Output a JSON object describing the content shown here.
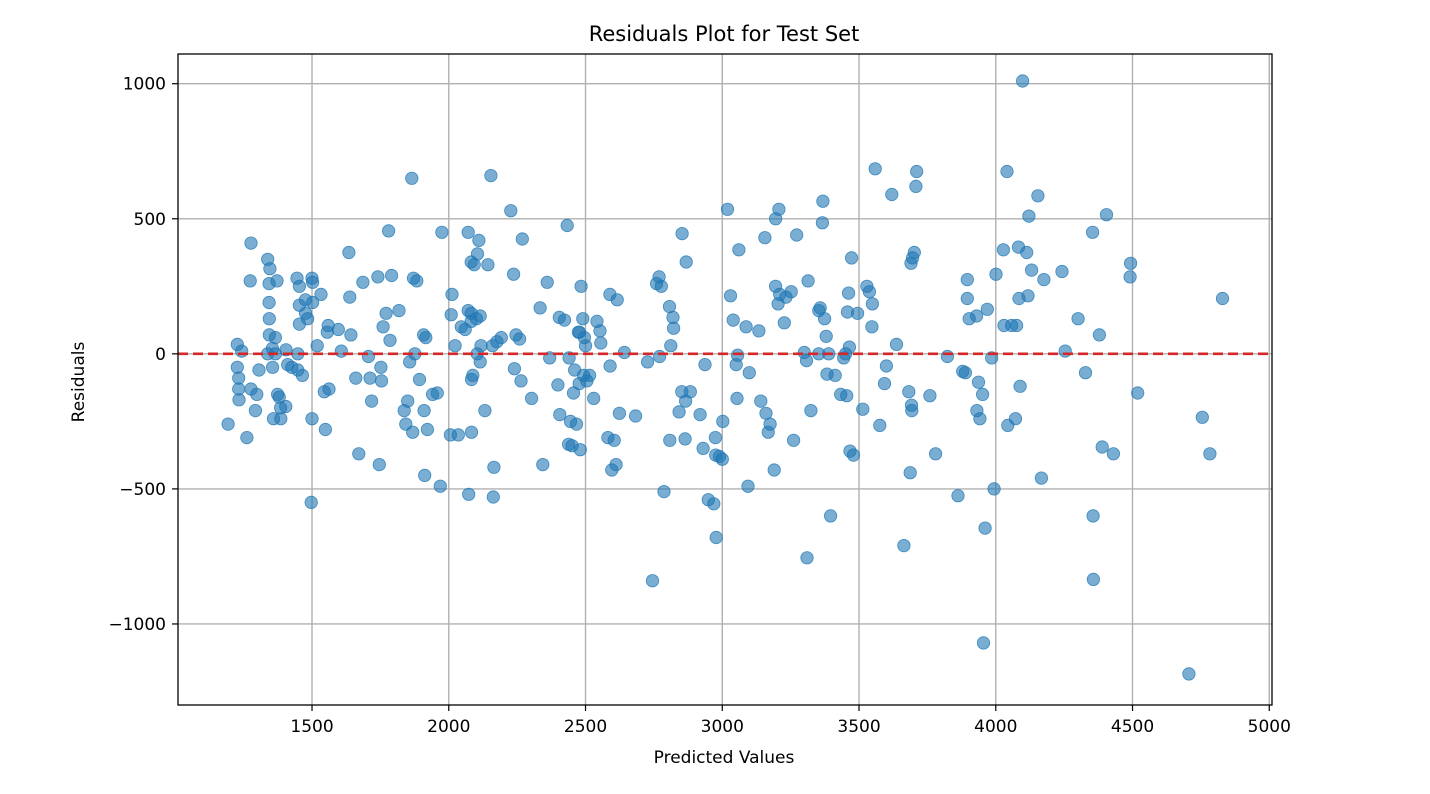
{
  "chart_data": {
    "type": "scatter",
    "title": "Residuals Plot for Test Set",
    "xlabel": "Predicted Values",
    "ylabel": "Residuals",
    "xlim": [
      1010,
      5010
    ],
    "ylim": [
      -1300,
      1110
    ],
    "xticks": [
      1500,
      2000,
      2500,
      3000,
      3500,
      4000,
      4500,
      5000
    ],
    "xtick_labels": [
      "1500",
      "2000",
      "2500",
      "3000",
      "3500",
      "4000",
      "4500",
      "5000"
    ],
    "yticks": [
      -1000,
      -500,
      0,
      500,
      1000
    ],
    "ytick_labels": [
      "−1000",
      "−500",
      "0",
      "500",
      "1000"
    ],
    "grid": true,
    "point_color": "#1f77b4",
    "point_opacity": 0.6,
    "reference_line": {
      "y": 0,
      "color": "#d62728",
      "style": "dashed"
    },
    "points": [
      [
        1193,
        -260
      ],
      [
        1227,
        35
      ],
      [
        1227,
        -50
      ],
      [
        1232,
        -90
      ],
      [
        1232,
        -130
      ],
      [
        1233,
        -170
      ],
      [
        1243,
        10
      ],
      [
        1262,
        -310
      ],
      [
        1274,
        270
      ],
      [
        1277,
        410
      ],
      [
        1277,
        -130
      ],
      [
        1293,
        -210
      ],
      [
        1298,
        -150
      ],
      [
        1306,
        -60
      ],
      [
        1338,
        350
      ],
      [
        1338,
        0
      ],
      [
        1343,
        260
      ],
      [
        1343,
        190
      ],
      [
        1344,
        130
      ],
      [
        1344,
        70
      ],
      [
        1346,
        315
      ],
      [
        1355,
        20
      ],
      [
        1356,
        -50
      ],
      [
        1359,
        -240
      ],
      [
        1366,
        60
      ],
      [
        1366,
        0
      ],
      [
        1372,
        270
      ],
      [
        1374,
        -150
      ],
      [
        1380,
        -160
      ],
      [
        1385,
        -200
      ],
      [
        1386,
        -240
      ],
      [
        1404,
        -195
      ],
      [
        1405,
        15
      ],
      [
        1411,
        -40
      ],
      [
        1426,
        -50
      ],
      [
        1445,
        280
      ],
      [
        1448,
        0
      ],
      [
        1448,
        -60
      ],
      [
        1454,
        250
      ],
      [
        1454,
        180
      ],
      [
        1454,
        110
      ],
      [
        1465,
        -80
      ],
      [
        1476,
        200
      ],
      [
        1476,
        150
      ],
      [
        1484,
        130
      ],
      [
        1497,
        -550
      ],
      [
        1500,
        280
      ],
      [
        1500,
        -240
      ],
      [
        1502,
        190
      ],
      [
        1502,
        265
      ],
      [
        1519,
        30
      ],
      [
        1533,
        220
      ],
      [
        1545,
        -140
      ],
      [
        1549,
        -280
      ],
      [
        1556,
        80
      ],
      [
        1559,
        105
      ],
      [
        1562,
        -130
      ],
      [
        1596,
        90
      ],
      [
        1607,
        10
      ],
      [
        1635,
        375
      ],
      [
        1638,
        210
      ],
      [
        1642,
        70
      ],
      [
        1660,
        -90
      ],
      [
        1671,
        -370
      ],
      [
        1686,
        265
      ],
      [
        1706,
        -10
      ],
      [
        1712,
        -90
      ],
      [
        1718,
        -175
      ],
      [
        1741,
        285
      ],
      [
        1746,
        -410
      ],
      [
        1752,
        -50
      ],
      [
        1754,
        -100
      ],
      [
        1760,
        100
      ],
      [
        1771,
        150
      ],
      [
        1780,
        455
      ],
      [
        1785,
        50
      ],
      [
        1791,
        290
      ],
      [
        1818,
        160
      ],
      [
        1837,
        -210
      ],
      [
        1843,
        -260
      ],
      [
        1850,
        -175
      ],
      [
        1857,
        -30
      ],
      [
        1865,
        650
      ],
      [
        1868,
        -290
      ],
      [
        1871,
        280
      ],
      [
        1876,
        0
      ],
      [
        1883,
        270
      ],
      [
        1893,
        -95
      ],
      [
        1908,
        70
      ],
      [
        1910,
        -210
      ],
      [
        1912,
        -450
      ],
      [
        1916,
        60
      ],
      [
        1922,
        -280
      ],
      [
        1941,
        -150
      ],
      [
        1958,
        -145
      ],
      [
        1969,
        -490
      ],
      [
        1975,
        450
      ],
      [
        2006,
        -300
      ],
      [
        2009,
        145
      ],
      [
        2012,
        220
      ],
      [
        2023,
        30
      ],
      [
        2035,
        -300
      ],
      [
        2046,
        100
      ],
      [
        2060,
        90
      ],
      [
        2071,
        450
      ],
      [
        2071,
        160
      ],
      [
        2073,
        -520
      ],
      [
        2082,
        340
      ],
      [
        2082,
        150
      ],
      [
        2082,
        120
      ],
      [
        2083,
        -95
      ],
      [
        2083,
        -290
      ],
      [
        2088,
        -80
      ],
      [
        2093,
        330
      ],
      [
        2101,
        130
      ],
      [
        2104,
        0
      ],
      [
        2105,
        370
      ],
      [
        2110,
        420
      ],
      [
        2115,
        140
      ],
      [
        2115,
        -30
      ],
      [
        2118,
        30
      ],
      [
        2132,
        -210
      ],
      [
        2143,
        330
      ],
      [
        2154,
        660
      ],
      [
        2160,
        30
      ],
      [
        2163,
        -530
      ],
      [
        2165,
        -420
      ],
      [
        2176,
        45
      ],
      [
        2192,
        60
      ],
      [
        2227,
        530
      ],
      [
        2237,
        295
      ],
      [
        2240,
        -55
      ],
      [
        2246,
        70
      ],
      [
        2259,
        55
      ],
      [
        2264,
        -100
      ],
      [
        2269,
        425
      ],
      [
        2303,
        -165
      ],
      [
        2334,
        170
      ],
      [
        2344,
        -410
      ],
      [
        2360,
        265
      ],
      [
        2369,
        -15
      ],
      [
        2399,
        -115
      ],
      [
        2404,
        135
      ],
      [
        2406,
        -225
      ],
      [
        2423,
        125
      ],
      [
        2433,
        475
      ],
      [
        2438,
        -335
      ],
      [
        2440,
        -15
      ],
      [
        2445,
        -250
      ],
      [
        2451,
        -340
      ],
      [
        2456,
        -145
      ],
      [
        2460,
        -60
      ],
      [
        2467,
        -260
      ],
      [
        2474,
        80
      ],
      [
        2477,
        -110
      ],
      [
        2478,
        80
      ],
      [
        2481,
        -355
      ],
      [
        2484,
        250
      ],
      [
        2490,
        130
      ],
      [
        2493,
        -80
      ],
      [
        2496,
        60
      ],
      [
        2500,
        30
      ],
      [
        2505,
        -100
      ],
      [
        2515,
        -80
      ],
      [
        2530,
        -165
      ],
      [
        2542,
        120
      ],
      [
        2553,
        85
      ],
      [
        2556,
        40
      ],
      [
        2582,
        -310
      ],
      [
        2589,
        220
      ],
      [
        2590,
        -45
      ],
      [
        2596,
        -430
      ],
      [
        2605,
        -320
      ],
      [
        2612,
        -410
      ],
      [
        2616,
        200
      ],
      [
        2624,
        -220
      ],
      [
        2642,
        5
      ],
      [
        2683,
        -230
      ],
      [
        2727,
        -30
      ],
      [
        2745,
        -840
      ],
      [
        2760,
        260
      ],
      [
        2769,
        285
      ],
      [
        2771,
        -10
      ],
      [
        2777,
        250
      ],
      [
        2787,
        -510
      ],
      [
        2807,
        175
      ],
      [
        2808,
        -320
      ],
      [
        2812,
        30
      ],
      [
        2820,
        135
      ],
      [
        2822,
        95
      ],
      [
        2842,
        -215
      ],
      [
        2852,
        -140
      ],
      [
        2853,
        445
      ],
      [
        2864,
        -315
      ],
      [
        2866,
        -175
      ],
      [
        2868,
        340
      ],
      [
        2883,
        -140
      ],
      [
        2919,
        -225
      ],
      [
        2930,
        -350
      ],
      [
        2937,
        -40
      ],
      [
        2949,
        -540
      ],
      [
        2969,
        -555
      ],
      [
        2975,
        -310
      ],
      [
        2976,
        -375
      ],
      [
        2978,
        -680
      ],
      [
        2990,
        -380
      ],
      [
        3000,
        -390
      ],
      [
        3002,
        -250
      ],
      [
        3019,
        535
      ],
      [
        3030,
        215
      ],
      [
        3040,
        125
      ],
      [
        3051,
        -40
      ],
      [
        3054,
        -165
      ],
      [
        3056,
        -5
      ],
      [
        3061,
        385
      ],
      [
        3087,
        100
      ],
      [
        3094,
        -490
      ],
      [
        3099,
        -70
      ],
      [
        3134,
        85
      ],
      [
        3141,
        -175
      ],
      [
        3156,
        430
      ],
      [
        3160,
        -220
      ],
      [
        3168,
        -290
      ],
      [
        3175,
        -260
      ],
      [
        3190,
        -430
      ],
      [
        3195,
        250
      ],
      [
        3195,
        500
      ],
      [
        3204,
        185
      ],
      [
        3207,
        535
      ],
      [
        3210,
        220
      ],
      [
        3227,
        115
      ],
      [
        3233,
        210
      ],
      [
        3252,
        230
      ],
      [
        3261,
        -320
      ],
      [
        3272,
        440
      ],
      [
        3300,
        5
      ],
      [
        3308,
        -25
      ],
      [
        3310,
        -755
      ],
      [
        3314,
        270
      ],
      [
        3324,
        -210
      ],
      [
        3353,
        160
      ],
      [
        3353,
        0
      ],
      [
        3358,
        170
      ],
      [
        3366,
        485
      ],
      [
        3368,
        565
      ],
      [
        3374,
        130
      ],
      [
        3380,
        65
      ],
      [
        3383,
        -75
      ],
      [
        3389,
        0
      ],
      [
        3396,
        -600
      ],
      [
        3413,
        -80
      ],
      [
        3433,
        -150
      ],
      [
        3444,
        -15
      ],
      [
        3451,
        0
      ],
      [
        3455,
        -155
      ],
      [
        3458,
        155
      ],
      [
        3462,
        225
      ],
      [
        3465,
        25
      ],
      [
        3467,
        -360
      ],
      [
        3473,
        355
      ],
      [
        3480,
        -375
      ],
      [
        3495,
        150
      ],
      [
        3514,
        -205
      ],
      [
        3529,
        250
      ],
      [
        3538,
        230
      ],
      [
        3547,
        100
      ],
      [
        3549,
        185
      ],
      [
        3559,
        685
      ],
      [
        3576,
        -265
      ],
      [
        3593,
        -110
      ],
      [
        3600,
        -45
      ],
      [
        3620,
        590
      ],
      [
        3637,
        35
      ],
      [
        3664,
        -710
      ],
      [
        3682,
        -140
      ],
      [
        3687,
        -440
      ],
      [
        3690,
        335
      ],
      [
        3692,
        -190
      ],
      [
        3693,
        -210
      ],
      [
        3696,
        355
      ],
      [
        3702,
        375
      ],
      [
        3708,
        620
      ],
      [
        3711,
        675
      ],
      [
        3759,
        -155
      ],
      [
        3780,
        -370
      ],
      [
        3823,
        -10
      ],
      [
        3862,
        -525
      ],
      [
        3879,
        -65
      ],
      [
        3889,
        -70
      ],
      [
        3896,
        205
      ],
      [
        3896,
        275
      ],
      [
        3903,
        130
      ],
      [
        3930,
        140
      ],
      [
        3931,
        -210
      ],
      [
        3937,
        -105
      ],
      [
        3942,
        -240
      ],
      [
        3952,
        -150
      ],
      [
        3955,
        -1070
      ],
      [
        3961,
        -645
      ],
      [
        3969,
        165
      ],
      [
        3985,
        -15
      ],
      [
        3994,
        -500
      ],
      [
        4001,
        295
      ],
      [
        4028,
        385
      ],
      [
        4030,
        105
      ],
      [
        4041,
        675
      ],
      [
        4044,
        -265
      ],
      [
        4058,
        105
      ],
      [
        4072,
        -240
      ],
      [
        4076,
        105
      ],
      [
        4083,
        395
      ],
      [
        4085,
        205
      ],
      [
        4089,
        -120
      ],
      [
        4098,
        1010
      ],
      [
        4113,
        375
      ],
      [
        4118,
        215
      ],
      [
        4121,
        510
      ],
      [
        4131,
        310
      ],
      [
        4154,
        585
      ],
      [
        4167,
        -460
      ],
      [
        4176,
        275
      ],
      [
        4242,
        305
      ],
      [
        4254,
        10
      ],
      [
        4301,
        130
      ],
      [
        4328,
        -70
      ],
      [
        4354,
        450
      ],
      [
        4356,
        -600
      ],
      [
        4357,
        -835
      ],
      [
        4379,
        70
      ],
      [
        4389,
        -345
      ],
      [
        4405,
        515
      ],
      [
        4430,
        -370
      ],
      [
        4491,
        285
      ],
      [
        4493,
        335
      ],
      [
        4519,
        -145
      ],
      [
        4706,
        -1185
      ],
      [
        4755,
        -235
      ],
      [
        4783,
        -370
      ],
      [
        4829,
        205
      ]
    ]
  }
}
